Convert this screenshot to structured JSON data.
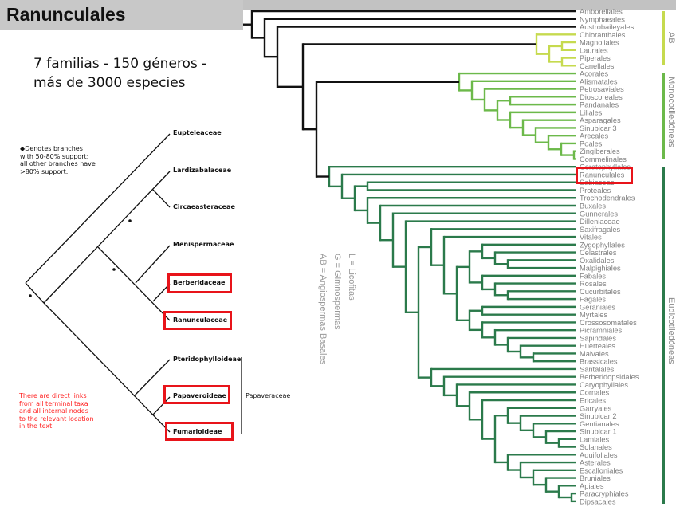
{
  "header": {
    "title": "Ranunculales"
  },
  "subtitle": {
    "line1": "7 familias - 150 géneros -",
    "line2": "más de 3000 especies"
  },
  "left_tree": {
    "support_note": [
      "◆Denotes branches",
      "with 50-80% support;",
      "all other branches have",
      ">80% support."
    ],
    "taxa": {
      "eupteleaceae": "Eupteleaceae",
      "lardizabalaceae": "Lardizabalaceae",
      "circaeasteraceae": "Circaeasteraceae",
      "menispermaceae": "Menispermaceae",
      "berberidaceae": "Berberidaceae",
      "ranunculaceae": "Ranunculaceae",
      "pteridophylloideae": "Pteridophylloideae",
      "papaveroideae": "Papaveroideae",
      "fumarioideae": "Fumarioideae"
    },
    "group_label": "Papaveraceae",
    "links_note": [
      "There are direct links",
      "from all terminal taxa",
      "and all internal nodes",
      "to the relevant location",
      "in the text."
    ]
  },
  "legend": [
    "L = Licofitas",
    "G = Gimnospermas",
    "AB = Angiospermas Basales"
  ],
  "right_tree": {
    "groups": {
      "ab": "AB",
      "monocots": "Monocotiledóneas",
      "eudicots": "Eudicotiledóneas"
    },
    "highlighted": "Ranunculales",
    "ab": [
      "Amborellales",
      "Nymphaeales",
      "Austrobaileyales",
      "Chloranthales",
      "Magnoliales",
      "Laurales",
      "Piperales",
      "Canellales"
    ],
    "monocots": [
      "Acorales",
      "Alismatales",
      "Petrosaviales",
      "Dioscoreales",
      "Pandanales",
      "Liliales",
      "Asparagales",
      "Sinubicar 3",
      "Arecales",
      "Poales",
      "Zingiberales",
      "Commelinales"
    ],
    "eudicots": [
      "Ceratophyllales",
      "Ranunculales",
      "Sabiaceae",
      "Proteales",
      "Trochodendrales",
      "Buxales",
      "Gunnerales",
      "Dilleniaceae",
      "Saxifragales",
      "Vitales",
      "Zygophyllales",
      "Celastrales",
      "Oxalidales",
      "Malpighiales",
      "Fabales",
      "Rosales",
      "Cucurbitales",
      "Fagales",
      "Geraniales",
      "Myrtales",
      "Crossosomatales",
      "Picramniales",
      "Sapindales",
      "Huerteales",
      "Malvales",
      "Brassicales",
      "Santalales",
      "Berberidopsidales",
      "Caryophyllales",
      "Cornales",
      "Ericales",
      "Garryales",
      "Sinubicar 2",
      "Gentianales",
      "Sinubicar 1",
      "Lamiales",
      "Solanales",
      "Aquifoliales",
      "Asterales",
      "Escalloniales",
      "Bruniales",
      "Apiales",
      "Paracryphiales",
      "Dipsacales"
    ],
    "colors": {
      "ab": "#c6da4e",
      "monocots": "#6cb94a",
      "eudicots": "#2b7a4b",
      "backbone": "#111111",
      "label": "#808080",
      "highlight": "#e8141a"
    }
  }
}
